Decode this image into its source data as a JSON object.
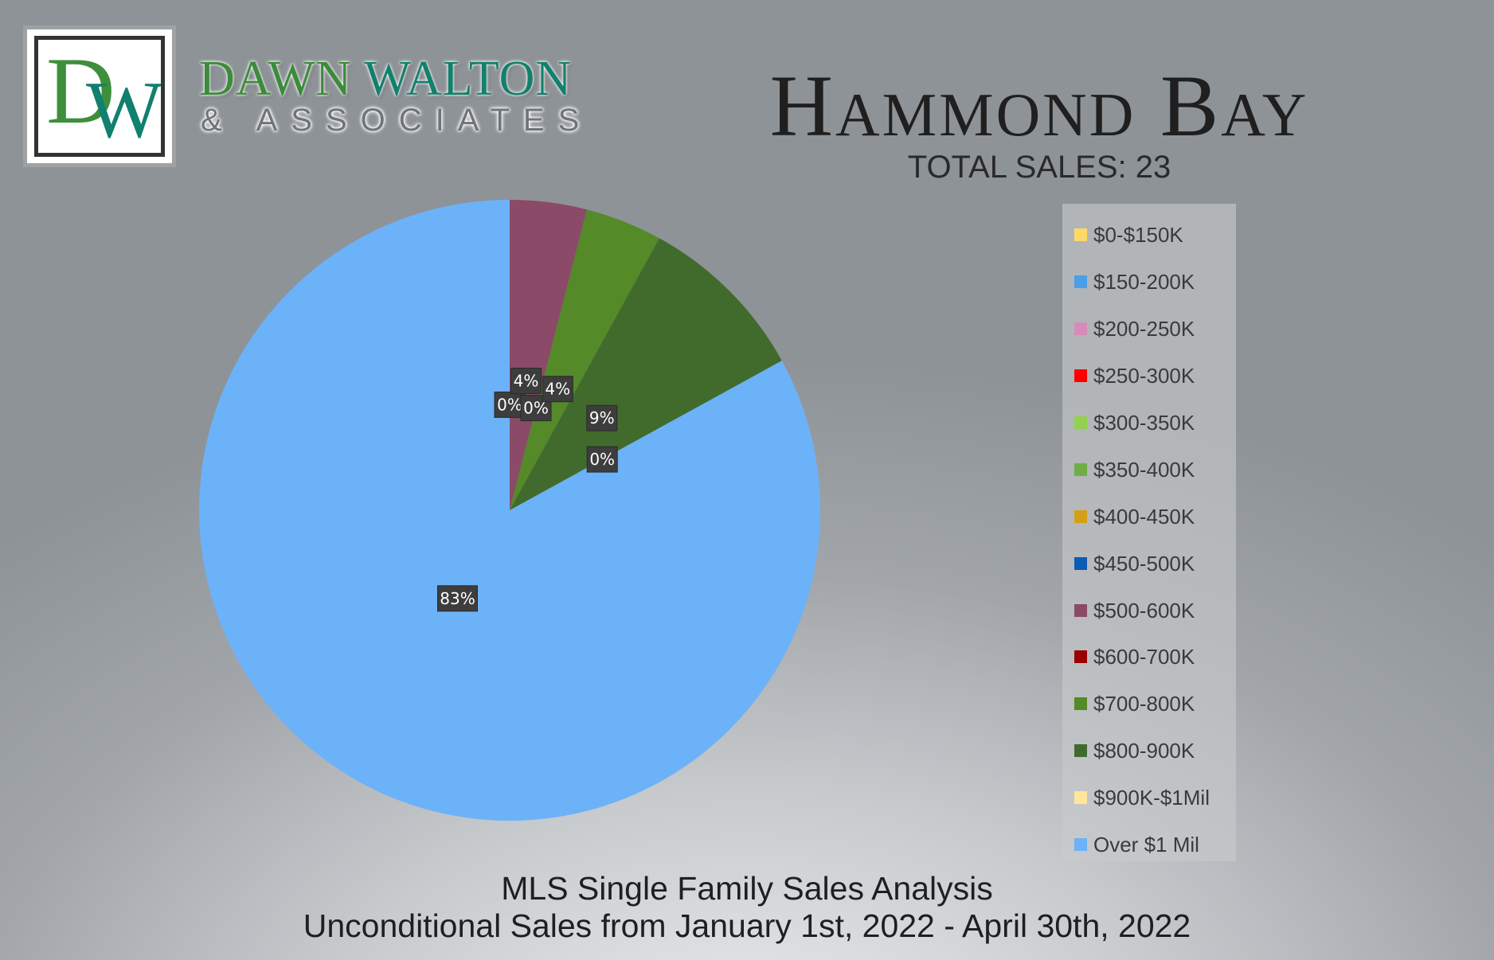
{
  "brand": {
    "monogram_d": "D",
    "monogram_w": "W",
    "name_part1": "DAWN",
    "name_part2": "WALTON",
    "subtitle": "& ASSOCIATES",
    "colors": {
      "green": "#3c8b3a",
      "teal": "#12806d"
    }
  },
  "chart_data": {
    "type": "pie",
    "title": "Hammond Bay",
    "subtitle": "TOTAL SALES: 23",
    "legend_position": "right",
    "slices": [
      {
        "label": "$0-$150K",
        "value": 0,
        "color": "#ffd966",
        "data_label": ""
      },
      {
        "label": "$150-200K",
        "value": 0,
        "color": "#4a9fe8",
        "data_label": ""
      },
      {
        "label": "$200-250K",
        "value": 0,
        "color": "#d58cb6",
        "data_label": ""
      },
      {
        "label": "$250-300K",
        "value": 0,
        "color": "#ff0000",
        "data_label": ""
      },
      {
        "label": "$300-350K",
        "value": 0,
        "color": "#92d050",
        "data_label": "0%"
      },
      {
        "label": "$350-400K",
        "value": 0,
        "color": "#70ad47",
        "data_label": ""
      },
      {
        "label": "$400-450K",
        "value": 0,
        "color": "#d4a017",
        "data_label": ""
      },
      {
        "label": "$450-500K",
        "value": 0,
        "color": "#0b5db3",
        "data_label": ""
      },
      {
        "label": "$500-600K",
        "value": 4,
        "color": "#8a4a68",
        "data_label": "4%"
      },
      {
        "label": "$600-700K",
        "value": 0,
        "color": "#990000",
        "data_label": "0%"
      },
      {
        "label": "$700-800K",
        "value": 4,
        "color": "#548a28",
        "data_label": "4%"
      },
      {
        "label": "$800-900K",
        "value": 9,
        "color": "#416b2d",
        "data_label": "9%"
      },
      {
        "label": "$900K-$1Mil",
        "value": 0,
        "color": "#ffe699",
        "data_label": "0%"
      },
      {
        "label": "Over $1 Mil",
        "value": 83,
        "color": "#6cb2f8",
        "data_label": "83%"
      }
    ]
  },
  "footer": {
    "line1": "MLS Single Family Sales Analysis",
    "line2": "Unconditional Sales from January 1st, 2022 - April 30th, 2022"
  }
}
